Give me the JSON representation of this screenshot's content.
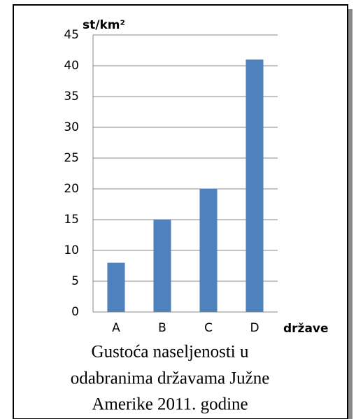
{
  "chart_data": {
    "type": "bar",
    "y_label": "st/km²",
    "x_label": "države",
    "caption": [
      "Gustoća naseljenosti u",
      "odabranima državama Južne",
      "Amerike 2011. godine"
    ],
    "categories": [
      "A",
      "B",
      "C",
      "D"
    ],
    "values": [
      8,
      15,
      20,
      41
    ],
    "color": "#4f81bd",
    "ylim": [
      0,
      45
    ],
    "yticks": [
      0,
      5,
      10,
      15,
      20,
      25,
      30,
      35,
      40,
      45
    ],
    "grid": true
  }
}
